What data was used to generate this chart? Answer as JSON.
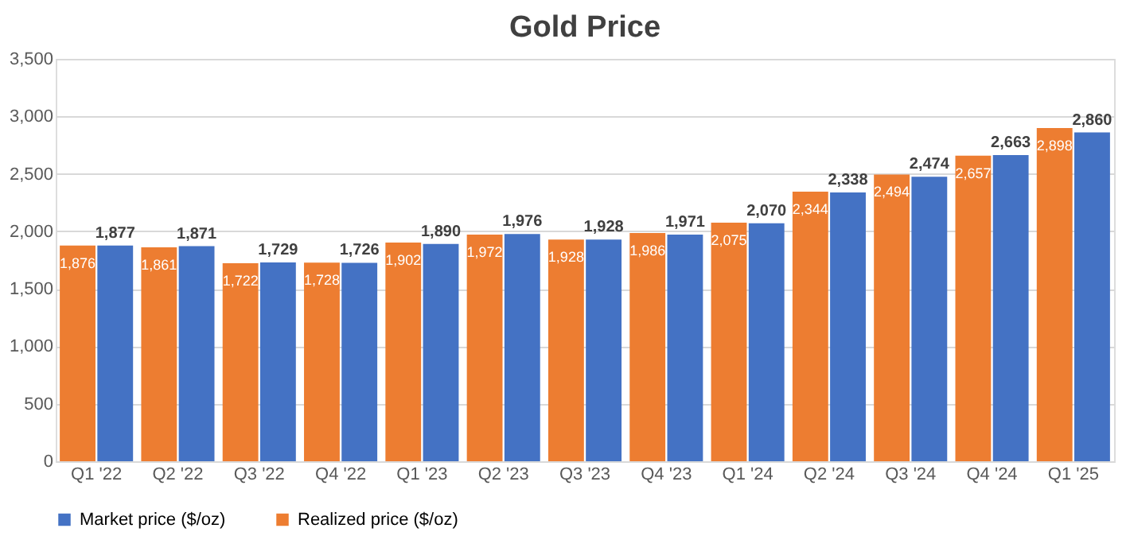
{
  "chart_data": {
    "type": "bar",
    "title": "Gold Price",
    "categories": [
      "Q1 '22",
      "Q2 '22",
      "Q3 '22",
      "Q4 '22",
      "Q1 '23",
      "Q2 '23",
      "Q3 '23",
      "Q4 '23",
      "Q1 '24",
      "Q2 '24",
      "Q3 '24",
      "Q4 '24",
      "Q1 '25"
    ],
    "series": [
      {
        "name": "Realized price ($/oz)",
        "color": "#ed7d31",
        "values": [
          1876,
          1861,
          1722,
          1728,
          1902,
          1972,
          1928,
          1986,
          2075,
          2344,
          2494,
          2657,
          2898
        ],
        "value_labels": [
          "1,876",
          "1,861",
          "1,722",
          "1,728",
          "1,902",
          "1,972",
          "1,928",
          "1,986",
          "2,075",
          "2,344",
          "2,494",
          "2,657",
          "2,898"
        ]
      },
      {
        "name": "Market price ($/oz)",
        "color": "#4472c4",
        "values": [
          1877,
          1871,
          1729,
          1726,
          1890,
          1976,
          1928,
          1971,
          2070,
          2338,
          2474,
          2663,
          2860
        ],
        "value_labels": [
          "1,877",
          "1,871",
          "1,729",
          "1,726",
          "1,890",
          "1,976",
          "1,928",
          "1,971",
          "2,070",
          "2,338",
          "2,474",
          "2,663",
          "2,860"
        ]
      }
    ],
    "ylim": [
      0,
      3500
    ],
    "yticks": [
      0,
      {
        "value": 500,
        "label": "500"
      },
      {
        "value": 1000,
        "label": "1,000"
      },
      {
        "value": 1500,
        "label": "1,500"
      },
      {
        "value": 2000,
        "label": "2,000"
      },
      {
        "value": 2500,
        "label": "2,500"
      },
      {
        "value": 3000,
        "label": "3,000"
      },
      {
        "value": 3500,
        "label": "3,500"
      }
    ],
    "grid": "y",
    "legend": "bottom"
  }
}
